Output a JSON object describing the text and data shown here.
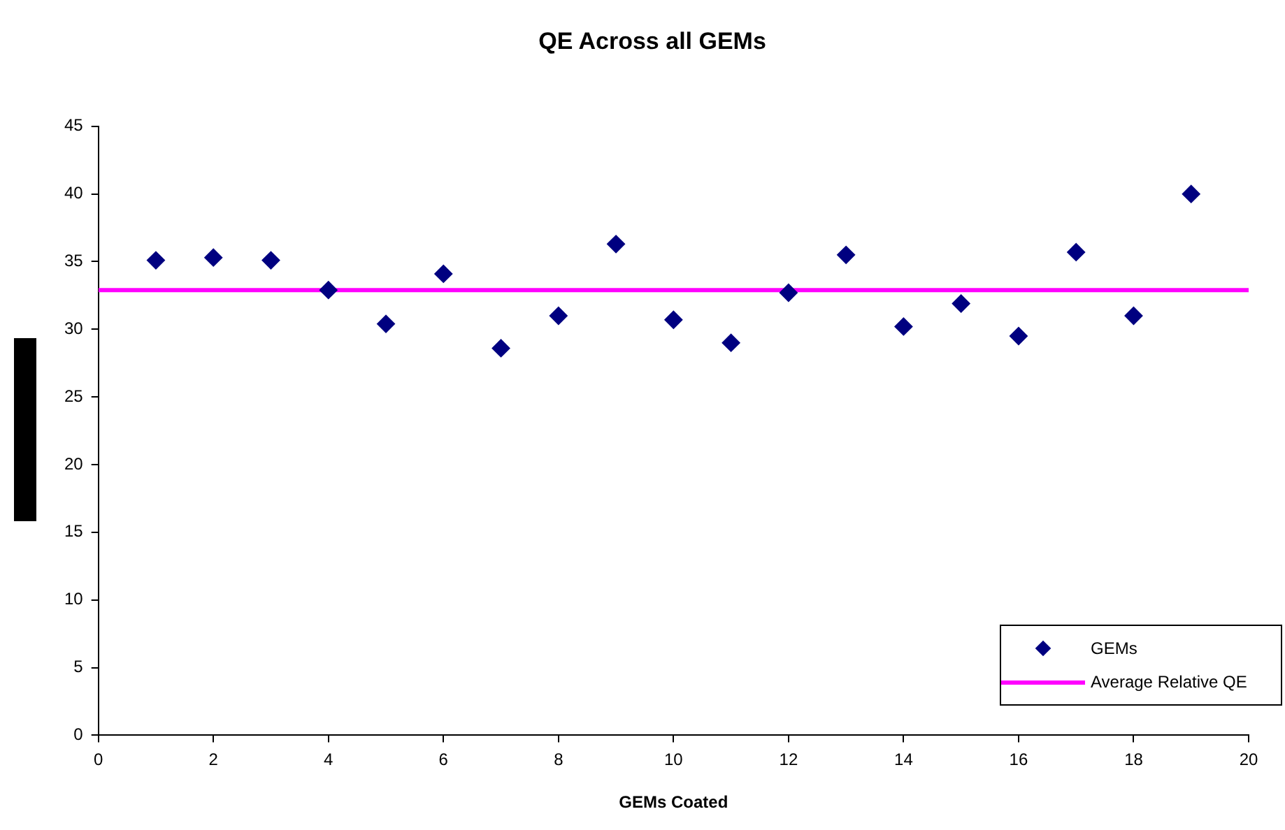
{
  "chart_data": {
    "type": "scatter",
    "title": "QE Across all GEMs",
    "xlabel": "GEMs Coated",
    "x": [
      1,
      2,
      3,
      4,
      5,
      6,
      7,
      8,
      9,
      10,
      11,
      12,
      13,
      14,
      15,
      16,
      17,
      18,
      19
    ],
    "series": [
      {
        "name": "GEMs",
        "type": "scatter",
        "marker": "diamond",
        "color": "#000080",
        "values": [
          35.1,
          35.3,
          35.1,
          32.9,
          30.4,
          34.1,
          28.6,
          31.0,
          36.3,
          30.7,
          29.0,
          32.7,
          35.5,
          30.2,
          31.9,
          29.5,
          35.7,
          31.0,
          40.0
        ]
      },
      {
        "name": "Average Relative QE",
        "type": "line",
        "marker": "none",
        "color": "#ff00ff",
        "x": [
          0,
          20
        ],
        "values": [
          32.9,
          32.9
        ]
      }
    ],
    "xlim": [
      0,
      20
    ],
    "xticks": [
      0,
      2,
      4,
      6,
      8,
      10,
      12,
      14,
      16,
      18,
      20
    ],
    "ylim": [
      0,
      45
    ],
    "yticks": [
      0,
      5,
      10,
      15,
      20,
      25,
      30,
      35,
      40,
      45
    ],
    "grid": false,
    "legend": "bottom right",
    "line_style": "solid"
  }
}
